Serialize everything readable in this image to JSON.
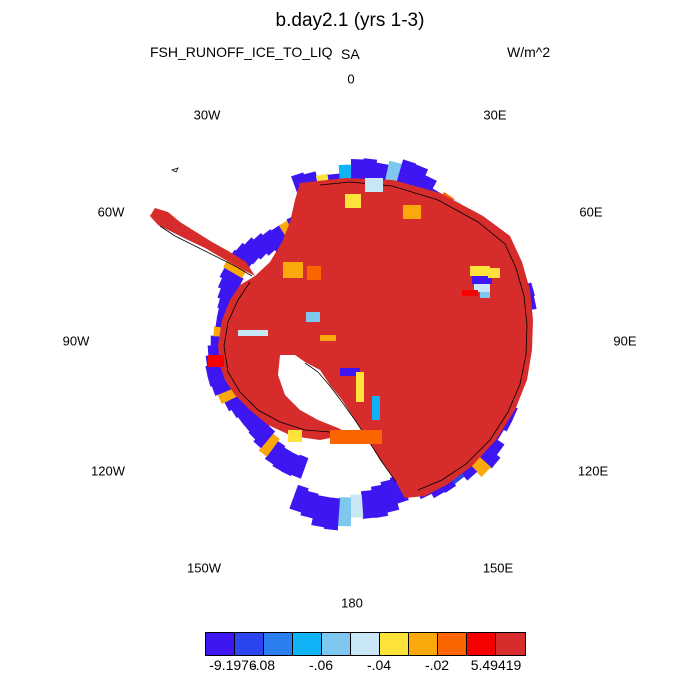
{
  "header": {
    "title": "b.day2.1 (yrs 1-3)",
    "field": "FSH_RUNOFF_ICE_TO_LIQ",
    "region": "SA",
    "units": "W/m^2"
  },
  "map": {
    "projection": "south polar stereographic",
    "longitude_labels": {
      "lon_0": "0",
      "lon_30e": "30E",
      "lon_60e": "60E",
      "lon_90e": "90E",
      "lon_120e": "120E",
      "lon_150e": "150E",
      "lon_180": "180",
      "lon_150w": "150W",
      "lon_120w": "120W",
      "lon_90w": "90W",
      "lon_60w": "60W",
      "lon_30w": "30W"
    },
    "dominant_fill_color": "#d62c2c",
    "coast_color": "#000000"
  },
  "colorbar": {
    "colors": [
      "#3e16f2",
      "#2b46f0",
      "#2d7ef0",
      "#10b3f5",
      "#7ec8ef",
      "#c8e6f5",
      "#fde23a",
      "#fba80a",
      "#fb6500",
      "#f70000",
      "#d62c2c"
    ],
    "labels": {
      "l0": "-9.1976",
      "l1": "-.08",
      "l2": "-.06",
      "l3": "-.04",
      "l4": "-.02",
      "l5": "5.49419"
    }
  }
}
